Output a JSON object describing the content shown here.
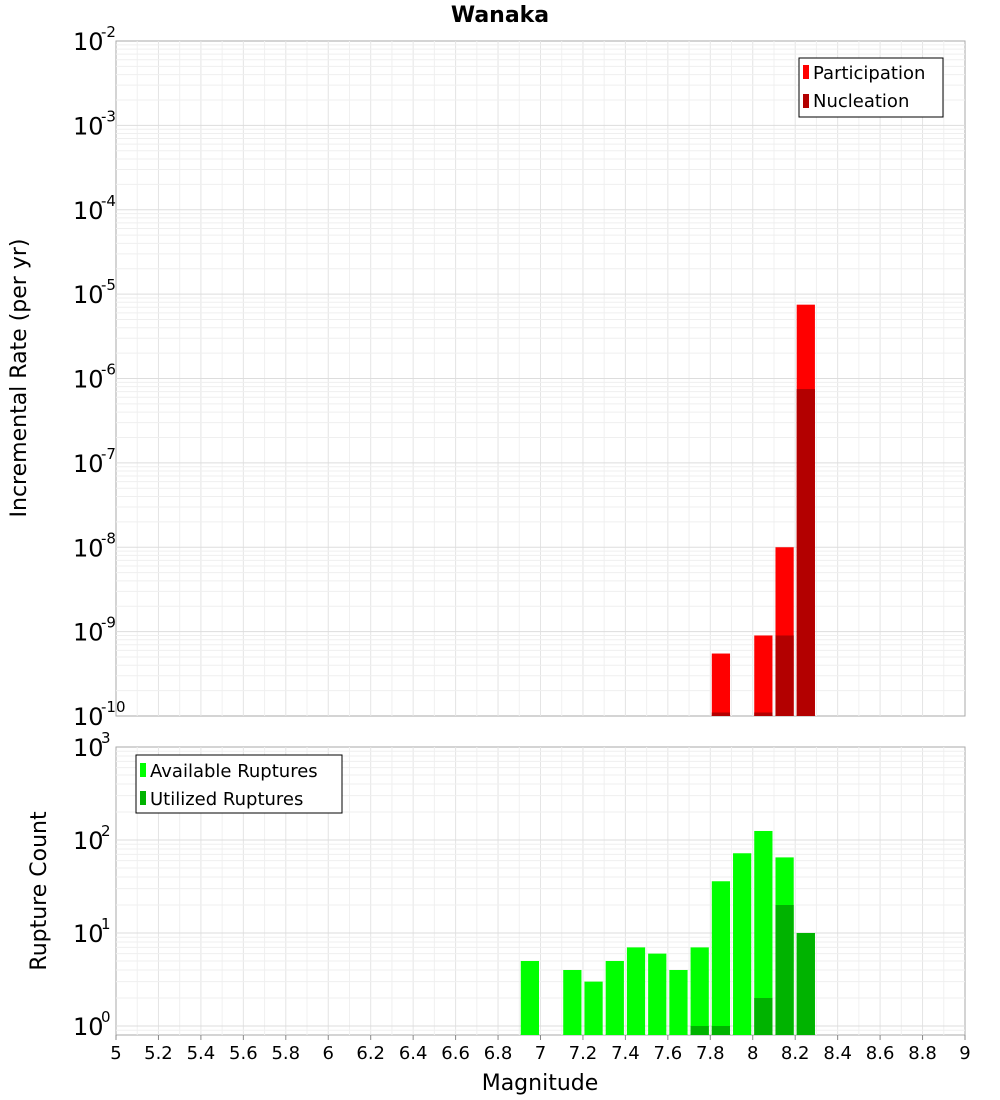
{
  "title": "Wanaka",
  "xlabel": "Magnitude",
  "chart_data": [
    {
      "type": "bar",
      "ylabel": "Incremental Rate (per yr)",
      "yscale": "log",
      "ylim": [
        1e-10,
        0.01
      ],
      "xlim": [
        5,
        9
      ],
      "bin_width": 0.1,
      "legend_position": "top-right",
      "y_tick_labels": [
        {
          "base": "10",
          "exp": "-10"
        },
        {
          "base": "10",
          "exp": "-9"
        },
        {
          "base": "10",
          "exp": "-8"
        },
        {
          "base": "10",
          "exp": "-7"
        },
        {
          "base": "10",
          "exp": "-6"
        },
        {
          "base": "10",
          "exp": "-5"
        },
        {
          "base": "10",
          "exp": "-4"
        },
        {
          "base": "10",
          "exp": "-3"
        },
        {
          "base": "10",
          "exp": "-2"
        }
      ],
      "series": [
        {
          "name": "Participation",
          "color": "#ff0000",
          "x": [
            7.85,
            8.05,
            8.15,
            8.25
          ],
          "values": [
            5.5e-10,
            9e-10,
            1e-08,
            7.5e-06
          ]
        },
        {
          "name": "Nucleation",
          "color": "#b30000",
          "x": [
            7.85,
            8.05,
            8.15,
            8.25
          ],
          "values": [
            1.1e-10,
            1.1e-10,
            9e-10,
            7.5e-07
          ]
        }
      ]
    },
    {
      "type": "bar",
      "ylabel": "Rupture Count",
      "yscale": "log",
      "ylim": [
        0.8,
        1000
      ],
      "xlim": [
        5,
        9
      ],
      "bin_width": 0.1,
      "legend_position": "top-left",
      "y_tick_labels": [
        {
          "base": "10",
          "exp": "0"
        },
        {
          "base": "10",
          "exp": "1"
        },
        {
          "base": "10",
          "exp": "2"
        },
        {
          "base": "10",
          "exp": "3"
        }
      ],
      "series": [
        {
          "name": "Available Ruptures",
          "color": "#00ff00",
          "x": [
            6.95,
            7.15,
            7.25,
            7.35,
            7.45,
            7.55,
            7.65,
            7.75,
            7.85,
            7.95,
            8.05,
            8.15,
            8.25
          ],
          "values": [
            5,
            4,
            3,
            5,
            7,
            6,
            4,
            7,
            36,
            72,
            125,
            65,
            10
          ]
        },
        {
          "name": "Utilized Ruptures",
          "color": "#00b300",
          "x": [
            7.75,
            7.85,
            8.05,
            8.15,
            8.25
          ],
          "values": [
            1,
            1,
            2,
            20,
            10
          ]
        }
      ]
    }
  ],
  "x_tick_labels": [
    "5",
    "5.2",
    "5.4",
    "5.6",
    "5.8",
    "6",
    "6.2",
    "6.4",
    "6.6",
    "6.8",
    "7",
    "7.2",
    "7.4",
    "7.6",
    "7.8",
    "8",
    "8.2",
    "8.4",
    "8.6",
    "8.8",
    "9"
  ]
}
